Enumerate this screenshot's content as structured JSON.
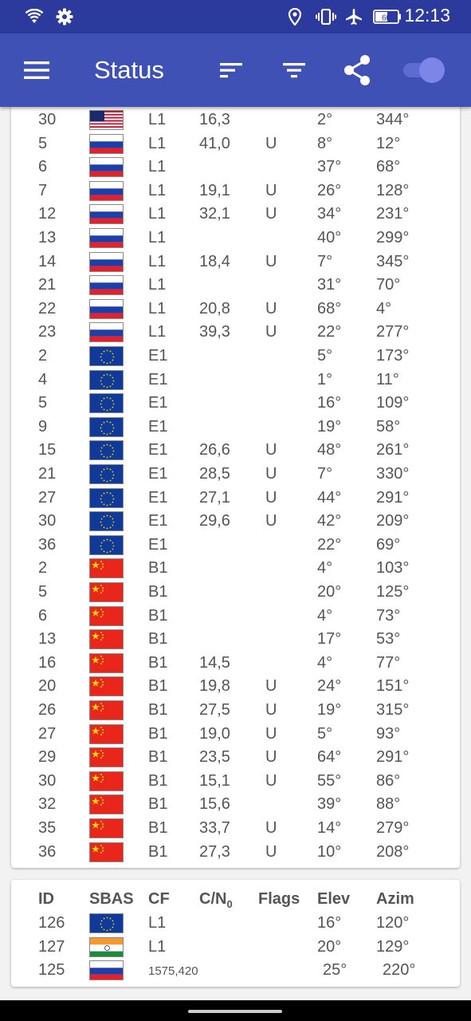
{
  "status_bar": {
    "time": "12:13",
    "battery": "60",
    "icons": [
      "wifi-icon",
      "gear-icon",
      "location-icon",
      "vibrate-icon",
      "airplane-icon",
      "battery-icon"
    ]
  },
  "app_bar": {
    "menu_icon": "menu-icon",
    "title": "Status",
    "sort_icon": "sort-icon",
    "filter_icon": "filter-icon",
    "share_icon": "share-icon",
    "toggle_on": true
  },
  "colors": {
    "status_bar": "#2c3a9e",
    "app_bar": "#3f51b5",
    "toggle_thumb": "#7b86e8"
  },
  "gnss_rows": [
    {
      "id": "30",
      "flag": "usa",
      "cf": "L1",
      "cn0": "16,3",
      "flags": "",
      "elev": "2°",
      "azim": "344°"
    },
    {
      "id": "5",
      "flag": "russia",
      "cf": "L1",
      "cn0": "41,0",
      "flags": "U",
      "elev": "8°",
      "azim": "12°"
    },
    {
      "id": "6",
      "flag": "russia",
      "cf": "L1",
      "cn0": "",
      "flags": "",
      "elev": "37°",
      "azim": "68°"
    },
    {
      "id": "7",
      "flag": "russia",
      "cf": "L1",
      "cn0": "19,1",
      "flags": "U",
      "elev": "26°",
      "azim": "128°"
    },
    {
      "id": "12",
      "flag": "russia",
      "cf": "L1",
      "cn0": "32,1",
      "flags": "U",
      "elev": "34°",
      "azim": "231°"
    },
    {
      "id": "13",
      "flag": "russia",
      "cf": "L1",
      "cn0": "",
      "flags": "",
      "elev": "40°",
      "azim": "299°"
    },
    {
      "id": "14",
      "flag": "russia",
      "cf": "L1",
      "cn0": "18,4",
      "flags": "U",
      "elev": "7°",
      "azim": "345°"
    },
    {
      "id": "21",
      "flag": "russia",
      "cf": "L1",
      "cn0": "",
      "flags": "",
      "elev": "31°",
      "azim": "70°"
    },
    {
      "id": "22",
      "flag": "russia",
      "cf": "L1",
      "cn0": "20,8",
      "flags": "U",
      "elev": "68°",
      "azim": "4°"
    },
    {
      "id": "23",
      "flag": "russia",
      "cf": "L1",
      "cn0": "39,3",
      "flags": "U",
      "elev": "22°",
      "azim": "277°"
    },
    {
      "id": "2",
      "flag": "eu",
      "cf": "E1",
      "cn0": "",
      "flags": "",
      "elev": "5°",
      "azim": "173°"
    },
    {
      "id": "4",
      "flag": "eu",
      "cf": "E1",
      "cn0": "",
      "flags": "",
      "elev": "1°",
      "azim": "11°"
    },
    {
      "id": "5",
      "flag": "eu",
      "cf": "E1",
      "cn0": "",
      "flags": "",
      "elev": "16°",
      "azim": "109°"
    },
    {
      "id": "9",
      "flag": "eu",
      "cf": "E1",
      "cn0": "",
      "flags": "",
      "elev": "19°",
      "azim": "58°"
    },
    {
      "id": "15",
      "flag": "eu",
      "cf": "E1",
      "cn0": "26,6",
      "flags": "U",
      "elev": "48°",
      "azim": "261°"
    },
    {
      "id": "21",
      "flag": "eu",
      "cf": "E1",
      "cn0": "28,5",
      "flags": "U",
      "elev": "7°",
      "azim": "330°"
    },
    {
      "id": "27",
      "flag": "eu",
      "cf": "E1",
      "cn0": "27,1",
      "flags": "U",
      "elev": "44°",
      "azim": "291°"
    },
    {
      "id": "30",
      "flag": "eu",
      "cf": "E1",
      "cn0": "29,6",
      "flags": "U",
      "elev": "42°",
      "azim": "209°"
    },
    {
      "id": "36",
      "flag": "eu",
      "cf": "E1",
      "cn0": "",
      "flags": "",
      "elev": "22°",
      "azim": "69°"
    },
    {
      "id": "2",
      "flag": "china",
      "cf": "B1",
      "cn0": "",
      "flags": "",
      "elev": "4°",
      "azim": "103°"
    },
    {
      "id": "5",
      "flag": "china",
      "cf": "B1",
      "cn0": "",
      "flags": "",
      "elev": "20°",
      "azim": "125°"
    },
    {
      "id": "6",
      "flag": "china",
      "cf": "B1",
      "cn0": "",
      "flags": "",
      "elev": "4°",
      "azim": "73°"
    },
    {
      "id": "13",
      "flag": "china",
      "cf": "B1",
      "cn0": "",
      "flags": "",
      "elev": "17°",
      "azim": "53°"
    },
    {
      "id": "16",
      "flag": "china",
      "cf": "B1",
      "cn0": "14,5",
      "flags": "",
      "elev": "4°",
      "azim": "77°"
    },
    {
      "id": "20",
      "flag": "china",
      "cf": "B1",
      "cn0": "19,8",
      "flags": "U",
      "elev": "24°",
      "azim": "151°"
    },
    {
      "id": "26",
      "flag": "china",
      "cf": "B1",
      "cn0": "27,5",
      "flags": "U",
      "elev": "19°",
      "azim": "315°"
    },
    {
      "id": "27",
      "flag": "china",
      "cf": "B1",
      "cn0": "19,0",
      "flags": "U",
      "elev": "5°",
      "azim": "93°"
    },
    {
      "id": "29",
      "flag": "china",
      "cf": "B1",
      "cn0": "23,5",
      "flags": "U",
      "elev": "64°",
      "azim": "291°"
    },
    {
      "id": "30",
      "flag": "china",
      "cf": "B1",
      "cn0": "15,1",
      "flags": "U",
      "elev": "55°",
      "azim": "86°"
    },
    {
      "id": "32",
      "flag": "china",
      "cf": "B1",
      "cn0": "15,6",
      "flags": "",
      "elev": "39°",
      "azim": "88°"
    },
    {
      "id": "35",
      "flag": "china",
      "cf": "B1",
      "cn0": "33,7",
      "flags": "U",
      "elev": "14°",
      "azim": "279°"
    },
    {
      "id": "36",
      "flag": "china",
      "cf": "B1",
      "cn0": "27,3",
      "flags": "U",
      "elev": "10°",
      "azim": "208°"
    }
  ],
  "sbas_table": {
    "headers": {
      "id": "ID",
      "sbas": "SBAS",
      "cf": "CF",
      "cn0": "C/N",
      "cn0_sub": "0",
      "flags": "Flags",
      "elev": "Elev",
      "azim": "Azim"
    },
    "rows": [
      {
        "id": "126",
        "flag": "eu",
        "cf": "L1",
        "cn0": "",
        "flags": "",
        "elev": "16°",
        "azim": "120°"
      },
      {
        "id": "127",
        "flag": "india",
        "cf": "L1",
        "cn0": "",
        "flags": "",
        "elev": "20°",
        "azim": "129°"
      },
      {
        "id": "125",
        "flag": "russia",
        "cf": "1575,420",
        "cn0": "",
        "flags": "",
        "elev": "25°",
        "azim": "220°"
      }
    ]
  }
}
